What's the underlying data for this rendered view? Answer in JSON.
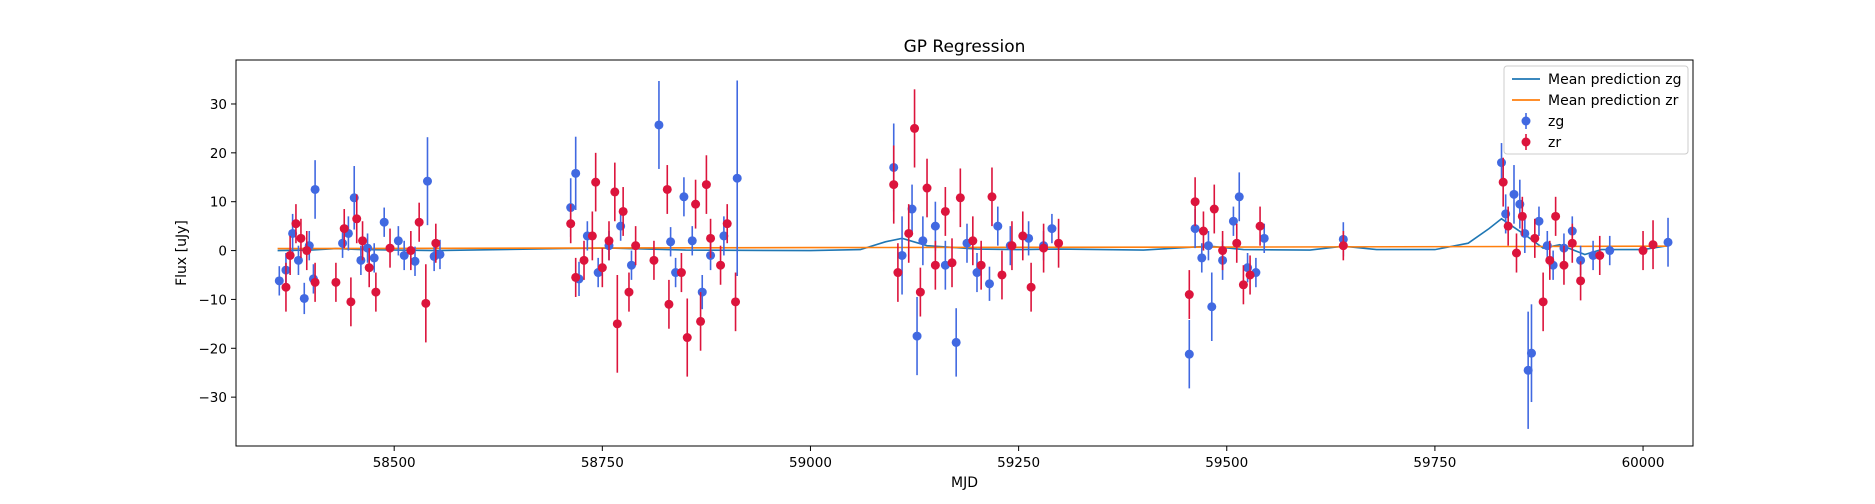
{
  "chart_data": {
    "type": "scatter",
    "title": "GP Regression",
    "xlabel": "MJD",
    "ylabel": "Flux [uJy]",
    "xlim": [
      58310,
      60060
    ],
    "ylim": [
      -40,
      39
    ],
    "xticks": [
      58500,
      58750,
      59000,
      59250,
      59500,
      59750,
      60000
    ],
    "yticks": [
      -30,
      -20,
      -10,
      0,
      10,
      20,
      30
    ],
    "grid": false,
    "legend_position": "top-right",
    "series": [
      {
        "name": "Mean prediction zg",
        "kind": "line",
        "color": "#1f77b4",
        "x": [
          58360,
          58400,
          58430,
          58460,
          58550,
          58700,
          58760,
          58850,
          59000,
          59060,
          59090,
          59110,
          59140,
          59200,
          59250,
          59300,
          59400,
          59450,
          59480,
          59520,
          59600,
          59640,
          59680,
          59750,
          59790,
          59815,
          59830,
          59860,
          59880,
          59900,
          59930,
          59950,
          60000,
          60030
        ],
        "y": [
          0.0,
          0.1,
          0.4,
          0.2,
          0.0,
          0.4,
          0.5,
          0.1,
          0.0,
          0.2,
          1.8,
          2.5,
          1.0,
          0.3,
          0.2,
          0.3,
          0.1,
          0.6,
          0.9,
          0.2,
          0.1,
          0.9,
          0.2,
          0.2,
          1.5,
          4.5,
          6.5,
          3.0,
          0.5,
          1.2,
          -0.8,
          0.2,
          0.2,
          1.0
        ]
      },
      {
        "name": "Mean prediction zr",
        "kind": "line",
        "color": "#ff7f0e",
        "x": [
          58360,
          59000,
          59500,
          60030
        ],
        "y": [
          0.4,
          0.6,
          0.7,
          0.9
        ]
      },
      {
        "name": "zg",
        "kind": "errorbar",
        "color": "#4169e1",
        "points": [
          [
            58362,
            -6.2,
            3.0
          ],
          [
            58370,
            -4.0,
            3.5
          ],
          [
            58378,
            3.5,
            4.0
          ],
          [
            58385,
            -2.0,
            3.0
          ],
          [
            58392,
            -9.8,
            3.2
          ],
          [
            58398,
            1.0,
            3.0
          ],
          [
            58405,
            12.5,
            6.0
          ],
          [
            58403,
            -5.8,
            3.0
          ],
          [
            58438,
            1.5,
            3.0
          ],
          [
            58445,
            3.5,
            3.5
          ],
          [
            58452,
            10.8,
            6.5
          ],
          [
            58460,
            -2.0,
            3.0
          ],
          [
            58468,
            0.5,
            3.0
          ],
          [
            58476,
            -1.5,
            3.0
          ],
          [
            58488,
            5.8,
            3.0
          ],
          [
            58505,
            2.0,
            3.0
          ],
          [
            58512,
            -1.0,
            3.0
          ],
          [
            58525,
            -2.2,
            3.0
          ],
          [
            58540,
            14.2,
            9.0
          ],
          [
            58548,
            -1.2,
            3.0
          ],
          [
            58555,
            -0.8,
            3.0
          ],
          [
            58712,
            8.8,
            6.0
          ],
          [
            58718,
            15.8,
            7.5
          ],
          [
            58722,
            -5.8,
            3.5
          ],
          [
            58732,
            3.0,
            3.0
          ],
          [
            58745,
            -4.5,
            3.0
          ],
          [
            58758,
            1.0,
            3.0
          ],
          [
            58772,
            5.0,
            3.0
          ],
          [
            58785,
            -3.0,
            3.0
          ],
          [
            58818,
            25.7,
            9.0
          ],
          [
            58832,
            1.8,
            3.0
          ],
          [
            58838,
            -4.5,
            3.0
          ],
          [
            58848,
            11.0,
            4.0
          ],
          [
            58858,
            2.0,
            3.0
          ],
          [
            58870,
            -8.5,
            3.5
          ],
          [
            58880,
            -1.0,
            3.0
          ],
          [
            58896,
            3.0,
            4.0
          ],
          [
            58912,
            14.8,
            20.0
          ],
          [
            59100,
            17.0,
            9.0
          ],
          [
            59110,
            -1.0,
            8.0
          ],
          [
            59122,
            8.5,
            5.0
          ],
          [
            59128,
            -17.5,
            8.0
          ],
          [
            59135,
            2.0,
            5.0
          ],
          [
            59150,
            5.0,
            5.0
          ],
          [
            59162,
            -3.0,
            5.0
          ],
          [
            59175,
            -18.8,
            7.0
          ],
          [
            59188,
            1.5,
            4.0
          ],
          [
            59200,
            -4.5,
            4.0
          ],
          [
            59215,
            -6.8,
            3.5
          ],
          [
            59225,
            5.0,
            4.0
          ],
          [
            59240,
            1.0,
            4.0
          ],
          [
            59262,
            2.5,
            3.5
          ],
          [
            59280,
            1.0,
            3.0
          ],
          [
            59290,
            4.5,
            3.0
          ],
          [
            59455,
            -21.2,
            7.0
          ],
          [
            59462,
            4.5,
            4.0
          ],
          [
            59470,
            -1.5,
            3.0
          ],
          [
            59478,
            1.0,
            3.0
          ],
          [
            59482,
            -11.5,
            7.0
          ],
          [
            59495,
            -2.0,
            4.0
          ],
          [
            59508,
            6.0,
            3.0
          ],
          [
            59515,
            11.0,
            5.0
          ],
          [
            59525,
            -3.5,
            3.0
          ],
          [
            59535,
            -4.5,
            3.0
          ],
          [
            59545,
            2.5,
            3.0
          ],
          [
            59640,
            2.3,
            3.5
          ],
          [
            59830,
            18.0,
            4.0
          ],
          [
            59835,
            7.5,
            4.0
          ],
          [
            59845,
            11.5,
            6.0
          ],
          [
            59852,
            9.5,
            5.0
          ],
          [
            59858,
            3.5,
            4.0
          ],
          [
            59862,
            -24.5,
            12.0
          ],
          [
            59866,
            -21.0,
            10.0
          ],
          [
            59875,
            6.0,
            3.0
          ],
          [
            59885,
            1.0,
            3.0
          ],
          [
            59892,
            -3.0,
            3.0
          ],
          [
            59905,
            0.5,
            3.0
          ],
          [
            59915,
            4.0,
            3.0
          ],
          [
            59925,
            -2.0,
            3.0
          ],
          [
            59940,
            -1.0,
            3.0
          ],
          [
            59960,
            0.0,
            3.0
          ],
          [
            60030,
            1.7,
            5.0
          ]
        ]
      },
      {
        "name": "zr",
        "kind": "errorbar",
        "color": "#dc143c",
        "points": [
          [
            58370,
            -7.5,
            5.0
          ],
          [
            58375,
            -1.0,
            4.0
          ],
          [
            58382,
            5.5,
            4.0
          ],
          [
            58388,
            2.5,
            4.0
          ],
          [
            58395,
            0.0,
            4.0
          ],
          [
            58405,
            -6.5,
            4.0
          ],
          [
            58430,
            -6.5,
            4.0
          ],
          [
            58440,
            4.5,
            4.0
          ],
          [
            58448,
            -10.5,
            5.0
          ],
          [
            58455,
            6.5,
            5.0
          ],
          [
            58462,
            2.0,
            4.0
          ],
          [
            58470,
            -3.5,
            4.0
          ],
          [
            58478,
            -8.5,
            4.0
          ],
          [
            58495,
            0.5,
            4.0
          ],
          [
            58520,
            0.0,
            4.0
          ],
          [
            58530,
            5.8,
            4.0
          ],
          [
            58538,
            -10.8,
            8.0
          ],
          [
            58550,
            1.5,
            4.0
          ],
          [
            58712,
            5.5,
            4.0
          ],
          [
            58718,
            -5.5,
            4.0
          ],
          [
            58728,
            -2.0,
            4.0
          ],
          [
            58738,
            3.0,
            5.0
          ],
          [
            58742,
            14.0,
            6.0
          ],
          [
            58750,
            -3.5,
            4.0
          ],
          [
            58758,
            2.0,
            4.0
          ],
          [
            58765,
            12.0,
            6.0
          ],
          [
            58768,
            -15.0,
            10.0
          ],
          [
            58775,
            8.0,
            5.0
          ],
          [
            58782,
            -8.5,
            4.0
          ],
          [
            58790,
            1.0,
            4.0
          ],
          [
            58812,
            -2.0,
            4.0
          ],
          [
            58828,
            12.5,
            5.0
          ],
          [
            58830,
            -11.0,
            5.0
          ],
          [
            58845,
            -4.5,
            4.0
          ],
          [
            58852,
            -17.8,
            8.0
          ],
          [
            58862,
            9.5,
            5.0
          ],
          [
            58868,
            -14.5,
            6.0
          ],
          [
            58875,
            13.5,
            6.0
          ],
          [
            58880,
            2.5,
            4.0
          ],
          [
            58892,
            -3.0,
            4.0
          ],
          [
            58900,
            5.5,
            4.0
          ],
          [
            58910,
            -10.5,
            6.0
          ],
          [
            59100,
            13.5,
            8.0
          ],
          [
            59105,
            -4.5,
            6.0
          ],
          [
            59118,
            3.5,
            6.0
          ],
          [
            59125,
            25.0,
            8.0
          ],
          [
            59132,
            -8.5,
            5.0
          ],
          [
            59140,
            12.8,
            6.0
          ],
          [
            59150,
            -3.0,
            5.0
          ],
          [
            59162,
            8.0,
            5.0
          ],
          [
            59170,
            -2.5,
            5.0
          ],
          [
            59180,
            10.8,
            6.0
          ],
          [
            59195,
            2.0,
            5.0
          ],
          [
            59205,
            -3.0,
            5.0
          ],
          [
            59218,
            11.0,
            6.0
          ],
          [
            59230,
            -5.0,
            5.0
          ],
          [
            59242,
            1.0,
            5.0
          ],
          [
            59255,
            3.0,
            5.0
          ],
          [
            59265,
            -7.5,
            5.0
          ],
          [
            59280,
            0.5,
            5.0
          ],
          [
            59298,
            1.5,
            5.0
          ],
          [
            59455,
            -9.0,
            5.0
          ],
          [
            59462,
            10.0,
            5.0
          ],
          [
            59472,
            4.0,
            4.0
          ],
          [
            59485,
            8.5,
            5.0
          ],
          [
            59495,
            0.0,
            4.0
          ],
          [
            59512,
            1.5,
            4.0
          ],
          [
            59520,
            -7.0,
            4.0
          ],
          [
            59528,
            -5.0,
            4.0
          ],
          [
            59540,
            5.0,
            4.0
          ],
          [
            59640,
            1.0,
            3.0
          ],
          [
            59832,
            14.0,
            5.0
          ],
          [
            59838,
            5.0,
            4.0
          ],
          [
            59848,
            -0.5,
            4.0
          ],
          [
            59855,
            7.0,
            4.0
          ],
          [
            59870,
            2.5,
            4.0
          ],
          [
            59880,
            -10.5,
            6.0
          ],
          [
            59888,
            -2.0,
            4.0
          ],
          [
            59895,
            7.0,
            4.0
          ],
          [
            59905,
            -3.0,
            4.0
          ],
          [
            59915,
            1.5,
            4.0
          ],
          [
            59925,
            -6.2,
            4.0
          ],
          [
            59948,
            -1.0,
            4.0
          ],
          [
            60000,
            0.0,
            4.0
          ],
          [
            60012,
            1.2,
            5.0
          ]
        ]
      }
    ]
  }
}
